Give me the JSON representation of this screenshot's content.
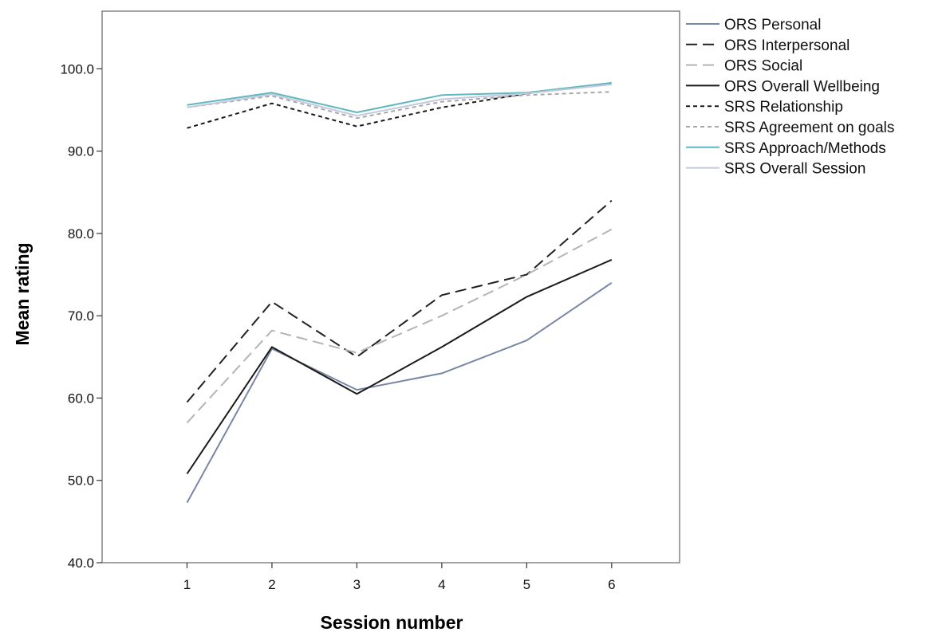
{
  "chart_data": {
    "type": "line",
    "title": "",
    "xlabel": "Session number",
    "ylabel": "Mean rating",
    "x": [
      1,
      2,
      3,
      4,
      5,
      6
    ],
    "x_tick_labels": [
      "1",
      "2",
      "3",
      "4",
      "5",
      "6"
    ],
    "y_tick_labels": [
      "40.0",
      "50.0",
      "60.0",
      "70.0",
      "80.0",
      "90.0",
      "100.0"
    ],
    "y_ticks": [
      40,
      50,
      60,
      70,
      80,
      90,
      100
    ],
    "xlim": [
      0.0,
      6.8
    ],
    "ylim": [
      40,
      107
    ],
    "grid": false,
    "legend_position": "right",
    "series": [
      {
        "name": "ORS Personal",
        "values": [
          47.3,
          66.0,
          61.0,
          63.0,
          67.0,
          74.0
        ],
        "color": "#7a86a6",
        "dash": "solid"
      },
      {
        "name": "ORS Interpersonal",
        "values": [
          59.5,
          71.7,
          65.0,
          72.5,
          75.0,
          84.0
        ],
        "color": "#222222",
        "dash": "longdash"
      },
      {
        "name": "ORS Social",
        "values": [
          57.0,
          68.2,
          65.5,
          70.0,
          75.0,
          80.5
        ],
        "color": "#b4b4b4",
        "dash": "longdash"
      },
      {
        "name": "ORS Overall Wellbeing",
        "values": [
          50.8,
          66.2,
          60.5,
          66.2,
          72.3,
          76.8
        ],
        "color": "#1a1a1a",
        "dash": "solid"
      },
      {
        "name": "SRS Relationship",
        "values": [
          92.8,
          95.8,
          93.0,
          95.3,
          97.0,
          98.2
        ],
        "color": "#1a1a1a",
        "dash": "shortdash"
      },
      {
        "name": "SRS Agreement on goals",
        "values": [
          95.3,
          96.7,
          94.0,
          96.0,
          96.8,
          97.2
        ],
        "color": "#a8a8a8",
        "dash": "shortdash"
      },
      {
        "name": "SRS Approach/Methods",
        "values": [
          95.6,
          97.1,
          94.7,
          96.8,
          97.1,
          98.3
        ],
        "color": "#5fb7bf",
        "dash": "solid"
      },
      {
        "name": "SRS Overall Session",
        "values": [
          95.3,
          96.9,
          94.3,
          96.3,
          97.0,
          98.1
        ],
        "color": "#c4c9dc",
        "dash": "solid"
      }
    ]
  }
}
